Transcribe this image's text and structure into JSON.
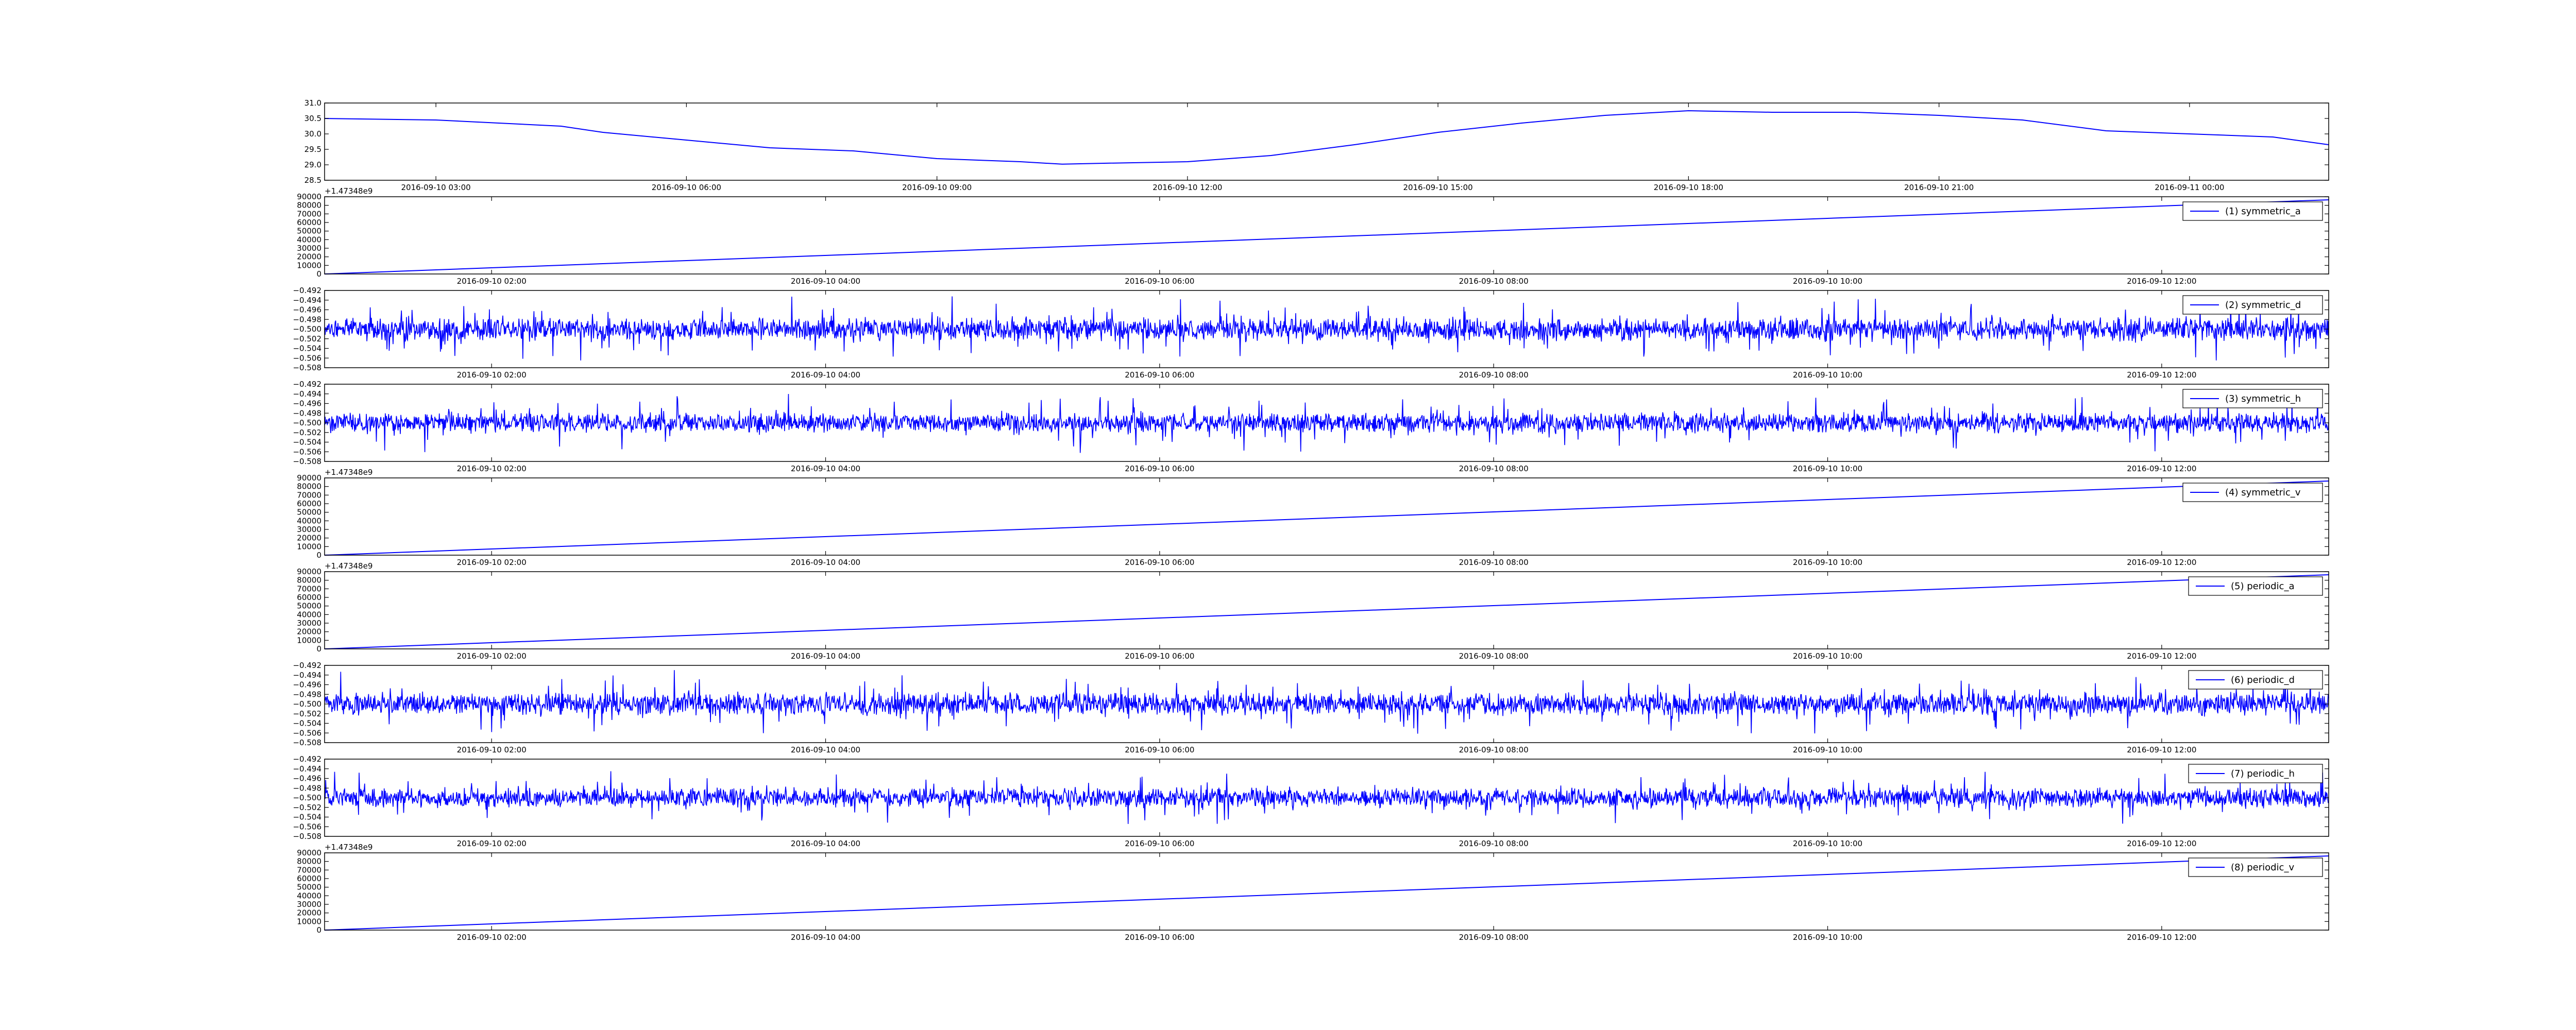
{
  "figure": {
    "title": "",
    "colors": {
      "line": "#0000ff",
      "axes": "#000000",
      "background": "#ffffff"
    }
  },
  "chart_data": [
    {
      "type": "line",
      "title": "",
      "xlabel": "",
      "ylabel": "",
      "x_start": "2016-09-10 01:40",
      "x_end": "2016-09-11 01:40",
      "xlim": [
        "2016-09-10 01:40",
        "2016-09-11 01:40"
      ],
      "x_tick_labels": [
        "2016-09-10 03:00",
        "2016-09-10 06:00",
        "2016-09-10 09:00",
        "2016-09-10 12:00",
        "2016-09-10 15:00",
        "2016-09-10 18:00",
        "2016-09-10 21:00",
        "2016-09-11 00:00"
      ],
      "ylim": [
        28.5,
        31.0
      ],
      "y_tick_labels": [
        "28.5",
        "29.0",
        "29.5",
        "30.0",
        "30.5",
        "31.0"
      ],
      "y_offset_label": "",
      "grid": false,
      "legend": "none",
      "series": [
        {
          "x": [
            "2016-09-10 01:40",
            "2016-09-10 03:00",
            "2016-09-10 04:30",
            "2016-09-10 05:00",
            "2016-09-10 06:00",
            "2016-09-10 07:00",
            "2016-09-10 08:00",
            "2016-09-10 09:00",
            "2016-09-10 10:00",
            "2016-09-10 10:30",
            "2016-09-10 11:00",
            "2016-09-10 12:00",
            "2016-09-10 13:00",
            "2016-09-10 14:00",
            "2016-09-10 15:00",
            "2016-09-10 16:00",
            "2016-09-10 17:00",
            "2016-09-10 18:00",
            "2016-09-10 19:00",
            "2016-09-10 20:00",
            "2016-09-10 21:00",
            "2016-09-10 22:00",
            "2016-09-10 23:00",
            "2016-09-11 00:00",
            "2016-09-11 01:00",
            "2016-09-11 01:40"
          ],
          "values": [
            30.5,
            30.45,
            30.25,
            30.05,
            29.8,
            29.55,
            29.45,
            29.2,
            29.1,
            29.02,
            29.05,
            29.1,
            29.3,
            29.65,
            30.05,
            30.35,
            30.6,
            30.75,
            30.7,
            30.7,
            30.6,
            30.45,
            30.1,
            30.0,
            29.9,
            29.65
          ]
        }
      ]
    },
    {
      "type": "line",
      "title": "",
      "xlabel": "",
      "ylabel": "",
      "xlim": [
        "2016-09-10 01:00",
        "2016-09-10 13:00"
      ],
      "x_tick_labels": [
        "2016-09-10 02:00",
        "2016-09-10 04:00",
        "2016-09-10 06:00",
        "2016-09-10 08:00",
        "2016-09-10 10:00",
        "2016-09-10 12:00"
      ],
      "ylim": [
        0,
        90000
      ],
      "y_tick_labels": [
        "0",
        "10000",
        "20000",
        "30000",
        "40000",
        "50000",
        "60000",
        "70000",
        "80000",
        "90000"
      ],
      "y_offset_label": "+1.47348e9",
      "grid": false,
      "legend": "top-right",
      "series": [
        {
          "name": "(1) symmetric_a",
          "x": [
            "2016-09-10 01:00",
            "2016-09-10 13:00"
          ],
          "values": [
            0,
            86400
          ]
        }
      ]
    },
    {
      "type": "line",
      "title": "",
      "xlabel": "",
      "ylabel": "",
      "xlim": [
        "2016-09-10 01:00",
        "2016-09-10 13:00"
      ],
      "x_tick_labels": [
        "2016-09-10 02:00",
        "2016-09-10 04:00",
        "2016-09-10 06:00",
        "2016-09-10 08:00",
        "2016-09-10 10:00",
        "2016-09-10 12:00"
      ],
      "ylim": [
        -0.508,
        -0.492
      ],
      "y_tick_labels": [
        "−0.508",
        "−0.506",
        "−0.504",
        "−0.502",
        "−0.500",
        "−0.498",
        "−0.496",
        "−0.494",
        "−0.492"
      ],
      "y_offset_label": "",
      "grid": false,
      "legend": "top-right",
      "series": [
        {
          "name": "(2) symmetric_d",
          "baseline": -0.5,
          "min": -0.5065,
          "max": -0.4925
        }
      ]
    },
    {
      "type": "line",
      "title": "",
      "xlabel": "",
      "ylabel": "",
      "xlim": [
        "2016-09-10 01:00",
        "2016-09-10 13:00"
      ],
      "x_tick_labels": [
        "2016-09-10 02:00",
        "2016-09-10 04:00",
        "2016-09-10 06:00",
        "2016-09-10 08:00",
        "2016-09-10 10:00",
        "2016-09-10 12:00"
      ],
      "ylim": [
        -0.508,
        -0.492
      ],
      "y_tick_labels": [
        "−0.508",
        "−0.506",
        "−0.504",
        "−0.502",
        "−0.500",
        "−0.498",
        "−0.496",
        "−0.494",
        "−0.492"
      ],
      "y_offset_label": "",
      "grid": false,
      "legend": "top-right",
      "series": [
        {
          "name": "(3) symmetric_h",
          "baseline": -0.5,
          "min": -0.5065,
          "max": -0.4935
        }
      ]
    },
    {
      "type": "line",
      "title": "",
      "xlabel": "",
      "ylabel": "",
      "xlim": [
        "2016-09-10 01:00",
        "2016-09-10 13:00"
      ],
      "x_tick_labels": [
        "2016-09-10 02:00",
        "2016-09-10 04:00",
        "2016-09-10 06:00",
        "2016-09-10 08:00",
        "2016-09-10 10:00",
        "2016-09-10 12:00"
      ],
      "ylim": [
        0,
        90000
      ],
      "y_tick_labels": [
        "0",
        "10000",
        "20000",
        "30000",
        "40000",
        "50000",
        "60000",
        "70000",
        "80000",
        "90000"
      ],
      "y_offset_label": "+1.47348e9",
      "grid": false,
      "legend": "top-right",
      "series": [
        {
          "name": "(4) symmetric_v",
          "x": [
            "2016-09-10 01:00",
            "2016-09-10 13:00"
          ],
          "values": [
            0,
            86400
          ]
        }
      ]
    },
    {
      "type": "line",
      "title": "",
      "xlabel": "",
      "ylabel": "",
      "xlim": [
        "2016-09-10 01:00",
        "2016-09-10 13:00"
      ],
      "x_tick_labels": [
        "2016-09-10 02:00",
        "2016-09-10 04:00",
        "2016-09-10 06:00",
        "2016-09-10 08:00",
        "2016-09-10 10:00",
        "2016-09-10 12:00"
      ],
      "ylim": [
        0,
        90000
      ],
      "y_tick_labels": [
        "0",
        "10000",
        "20000",
        "30000",
        "40000",
        "50000",
        "60000",
        "70000",
        "80000",
        "90000"
      ],
      "y_offset_label": "+1.47348e9",
      "grid": false,
      "legend": "top-right",
      "series": [
        {
          "name": "(5) periodic_a",
          "x": [
            "2016-09-10 01:00",
            "2016-09-10 13:00"
          ],
          "values": [
            0,
            86400
          ]
        }
      ]
    },
    {
      "type": "line",
      "title": "",
      "xlabel": "",
      "ylabel": "",
      "xlim": [
        "2016-09-10 01:00",
        "2016-09-10 13:00"
      ],
      "x_tick_labels": [
        "2016-09-10 02:00",
        "2016-09-10 04:00",
        "2016-09-10 06:00",
        "2016-09-10 08:00",
        "2016-09-10 10:00",
        "2016-09-10 12:00"
      ],
      "ylim": [
        -0.508,
        -0.492
      ],
      "y_tick_labels": [
        "−0.508",
        "−0.506",
        "−0.504",
        "−0.502",
        "−0.500",
        "−0.498",
        "−0.496",
        "−0.494",
        "−0.492"
      ],
      "y_offset_label": "",
      "grid": false,
      "legend": "top-right",
      "series": [
        {
          "name": "(6) periodic_d",
          "baseline": -0.5,
          "min": -0.5065,
          "max": -0.4925
        }
      ]
    },
    {
      "type": "line",
      "title": "",
      "xlabel": "",
      "ylabel": "",
      "xlim": [
        "2016-09-10 01:00",
        "2016-09-10 13:00"
      ],
      "x_tick_labels": [
        "2016-09-10 02:00",
        "2016-09-10 04:00",
        "2016-09-10 06:00",
        "2016-09-10 08:00",
        "2016-09-10 10:00",
        "2016-09-10 12:00"
      ],
      "ylim": [
        -0.508,
        -0.492
      ],
      "y_tick_labels": [
        "−0.508",
        "−0.506",
        "−0.504",
        "−0.502",
        "−0.500",
        "−0.498",
        "−0.496",
        "−0.494",
        "−0.492"
      ],
      "y_offset_label": "",
      "grid": false,
      "legend": "top-right",
      "series": [
        {
          "name": "(7) periodic_h",
          "baseline": -0.5,
          "min": -0.507,
          "max": -0.4935
        }
      ]
    },
    {
      "type": "line",
      "title": "",
      "xlabel": "",
      "ylabel": "",
      "xlim": [
        "2016-09-10 01:00",
        "2016-09-10 13:00"
      ],
      "x_tick_labels": [
        "2016-09-10 02:00",
        "2016-09-10 04:00",
        "2016-09-10 06:00",
        "2016-09-10 08:00",
        "2016-09-10 10:00",
        "2016-09-10 12:00"
      ],
      "ylim": [
        0,
        90000
      ],
      "y_tick_labels": [
        "0",
        "10000",
        "20000",
        "30000",
        "40000",
        "50000",
        "60000",
        "70000",
        "80000",
        "90000"
      ],
      "y_offset_label": "+1.47348e9",
      "grid": false,
      "legend": "top-right",
      "series": [
        {
          "name": "(8) periodic_v",
          "x": [
            "2016-09-10 01:00",
            "2016-09-10 13:00"
          ],
          "values": [
            0,
            86400
          ]
        }
      ]
    }
  ]
}
